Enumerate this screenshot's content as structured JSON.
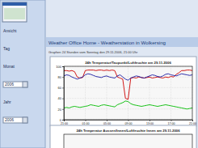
{
  "sidebar": {
    "items": [
      "Ansicht",
      "Tag",
      "Monat",
      "2006",
      "Jahr",
      "2006"
    ]
  },
  "header": {
    "title": "Weather Office Home - Weatherstation in Wolkersing",
    "subtitle": "Graphen 24 Stunden vom Sonntag den 29.11.2006, 21:00 Uhr"
  },
  "chart_data": [
    {
      "type": "line",
      "title": "24h Temperatur/Taupunkt/Luftfeuchte am 29.11.2006",
      "x": [
        0,
        0.5,
        1,
        1.5,
        2,
        2.5,
        3,
        3.5,
        4,
        4.5,
        5,
        5.5,
        6,
        6.5,
        7,
        7.5,
        8,
        8.5,
        9,
        9.5,
        10,
        10.5,
        11,
        11.5,
        12,
        12.5,
        13,
        13.5,
        14,
        14.5,
        15,
        15.5,
        16,
        16.5,
        17,
        17.5,
        18,
        18.5,
        19,
        19.5,
        20,
        20.5,
        21,
        21.5,
        22,
        22.5,
        23,
        23.5,
        24
      ],
      "series": [
        {
          "color": "#cc0000",
          "values": [
            92,
            92,
            91,
            92,
            90,
            80,
            78,
            79,
            92,
            93,
            93,
            93,
            92,
            93,
            93,
            92,
            93,
            92,
            93,
            92,
            80,
            78,
            76,
            40,
            38,
            78,
            79,
            78,
            80,
            79,
            78,
            79,
            80,
            78,
            79,
            80,
            79,
            78,
            80,
            79,
            81,
            80,
            85,
            88,
            92,
            92,
            93,
            93,
            92
          ]
        },
        {
          "color": "#1a1aa0",
          "values": [
            82,
            84,
            83,
            80,
            78,
            76,
            78,
            80,
            84,
            86,
            85,
            83,
            81,
            80,
            79,
            81,
            82,
            80,
            79,
            78,
            82,
            84,
            80,
            76,
            74,
            78,
            80,
            82,
            81,
            79,
            78,
            80,
            82,
            84,
            83,
            81,
            80,
            82,
            85,
            86,
            84,
            83,
            82,
            84,
            86,
            85,
            84,
            83,
            84
          ]
        },
        {
          "color": "#00bb00",
          "values": [
            22,
            23,
            22,
            24,
            25,
            24,
            23,
            24,
            25,
            26,
            28,
            27,
            26,
            25,
            27,
            28,
            27,
            26,
            25,
            24,
            28,
            30,
            32,
            35,
            34,
            30,
            28,
            27,
            26,
            25,
            26,
            27,
            28,
            27,
            26,
            25,
            26,
            27,
            28,
            27,
            26,
            25,
            24,
            23,
            22,
            21,
            20,
            21,
            22
          ]
        }
      ],
      "xlim": [
        0,
        24
      ],
      "xticks": [
        {
          "value": 0,
          "label": "21:00"
        },
        {
          "value": 4,
          "label": "01:00"
        },
        {
          "value": 8,
          "label": "05:00"
        },
        {
          "value": 12,
          "label": "09:00"
        },
        {
          "value": 16,
          "label": "13:00"
        },
        {
          "value": 20,
          "label": "17:00"
        },
        {
          "value": 24,
          "label": "21:00"
        }
      ],
      "ylim": [
        0,
        100
      ],
      "yticks": [
        0,
        20,
        40,
        60,
        80,
        100
      ],
      "grid": true
    },
    {
      "type": "line",
      "title": "24h Temperatur Aussen/Innen/Luftfeuchte Innen am 29.11.2006"
    }
  ]
}
